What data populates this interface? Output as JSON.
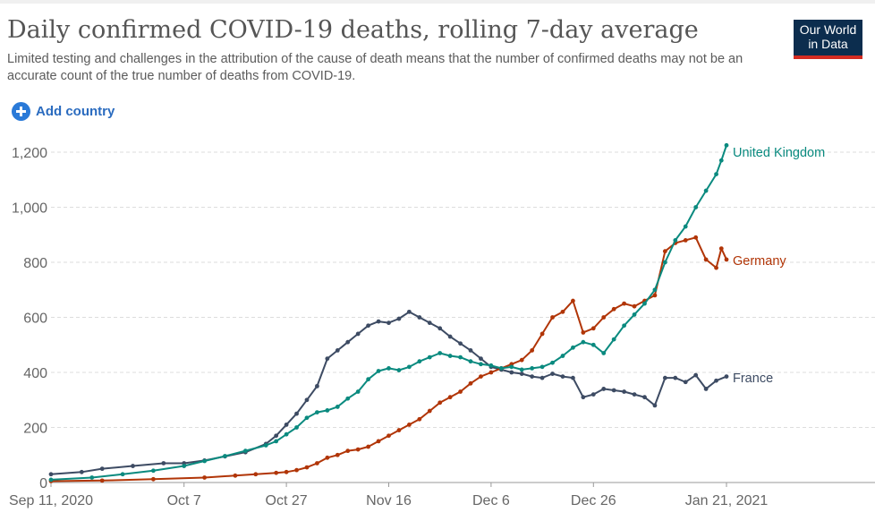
{
  "header": {
    "title": "Daily confirmed COVID-19 deaths, rolling 7-day average",
    "subtitle": "Limited testing and challenges in the attribution of the cause of death means that the number of confirmed deaths may not be an accurate count of the true number of deaths from COVID-19.",
    "logo_line1": "Our World",
    "logo_line2": "in Data",
    "add_country_label": "Add country",
    "add_icon": "plus-circle-icon"
  },
  "colors": {
    "uk": "#0a8a7f",
    "germany": "#b13507",
    "france": "#3d4b63",
    "accent": "#2a7ad8"
  },
  "chart_data": {
    "type": "line",
    "y_ticks": [
      0,
      200,
      400,
      600,
      800,
      1000,
      1200
    ],
    "y_tick_labels": [
      "0",
      "200",
      "400",
      "600",
      "800",
      "1,000",
      "1,200"
    ],
    "ylim": [
      0,
      1250
    ],
    "x_tick_labels": [
      "Sep 11, 2020",
      "Oct 7",
      "Oct 27",
      "Nov 16",
      "Dec 6",
      "Dec 26",
      "Jan 21, 2021"
    ],
    "x_tick_days": [
      0,
      26,
      46,
      66,
      86,
      106,
      132
    ],
    "x_range_days": [
      0,
      132
    ],
    "grid": "horizontal dashed",
    "series": [
      {
        "name": "United Kingdom",
        "key": "uk",
        "points": [
          [
            0,
            10
          ],
          [
            8,
            18
          ],
          [
            14,
            30
          ],
          [
            20,
            43
          ],
          [
            26,
            60
          ],
          [
            30,
            78
          ],
          [
            34,
            96
          ],
          [
            38,
            115
          ],
          [
            42,
            135
          ],
          [
            44,
            150
          ],
          [
            46,
            175
          ],
          [
            48,
            200
          ],
          [
            50,
            235
          ],
          [
            52,
            255
          ],
          [
            54,
            262
          ],
          [
            56,
            275
          ],
          [
            58,
            305
          ],
          [
            60,
            330
          ],
          [
            62,
            375
          ],
          [
            64,
            405
          ],
          [
            66,
            415
          ],
          [
            68,
            408
          ],
          [
            70,
            420
          ],
          [
            72,
            440
          ],
          [
            74,
            455
          ],
          [
            76,
            470
          ],
          [
            78,
            460
          ],
          [
            80,
            455
          ],
          [
            82,
            440
          ],
          [
            84,
            430
          ],
          [
            86,
            425
          ],
          [
            88,
            415
          ],
          [
            90,
            420
          ],
          [
            92,
            410
          ],
          [
            94,
            415
          ],
          [
            96,
            420
          ],
          [
            98,
            435
          ],
          [
            100,
            460
          ],
          [
            102,
            490
          ],
          [
            104,
            510
          ],
          [
            106,
            500
          ],
          [
            108,
            470
          ],
          [
            110,
            520
          ],
          [
            112,
            570
          ],
          [
            114,
            610
          ],
          [
            116,
            650
          ],
          [
            118,
            700
          ],
          [
            120,
            800
          ],
          [
            122,
            880
          ],
          [
            124,
            930
          ],
          [
            126,
            1000
          ],
          [
            128,
            1060
          ],
          [
            130,
            1120
          ],
          [
            131,
            1170
          ],
          [
            132,
            1225
          ]
        ]
      },
      {
        "name": "Germany",
        "key": "germany",
        "points": [
          [
            0,
            5
          ],
          [
            10,
            7
          ],
          [
            20,
            12
          ],
          [
            30,
            18
          ],
          [
            36,
            25
          ],
          [
            40,
            30
          ],
          [
            44,
            35
          ],
          [
            46,
            38
          ],
          [
            48,
            45
          ],
          [
            50,
            55
          ],
          [
            52,
            70
          ],
          [
            54,
            90
          ],
          [
            56,
            100
          ],
          [
            58,
            115
          ],
          [
            60,
            120
          ],
          [
            62,
            130
          ],
          [
            64,
            150
          ],
          [
            66,
            170
          ],
          [
            68,
            190
          ],
          [
            70,
            210
          ],
          [
            72,
            230
          ],
          [
            74,
            260
          ],
          [
            76,
            290
          ],
          [
            78,
            310
          ],
          [
            80,
            330
          ],
          [
            82,
            360
          ],
          [
            84,
            385
          ],
          [
            86,
            400
          ],
          [
            88,
            415
          ],
          [
            90,
            430
          ],
          [
            92,
            445
          ],
          [
            94,
            480
          ],
          [
            96,
            540
          ],
          [
            98,
            600
          ],
          [
            100,
            620
          ],
          [
            102,
            660
          ],
          [
            104,
            545
          ],
          [
            106,
            560
          ],
          [
            108,
            600
          ],
          [
            110,
            630
          ],
          [
            112,
            650
          ],
          [
            114,
            640
          ],
          [
            116,
            660
          ],
          [
            118,
            680
          ],
          [
            120,
            840
          ],
          [
            122,
            870
          ],
          [
            124,
            880
          ],
          [
            126,
            890
          ],
          [
            128,
            810
          ],
          [
            130,
            780
          ],
          [
            131,
            850
          ],
          [
            132,
            810
          ]
        ]
      },
      {
        "name": "France",
        "key": "france",
        "points": [
          [
            0,
            30
          ],
          [
            6,
            38
          ],
          [
            10,
            50
          ],
          [
            16,
            60
          ],
          [
            22,
            70
          ],
          [
            26,
            70
          ],
          [
            30,
            80
          ],
          [
            34,
            95
          ],
          [
            38,
            110
          ],
          [
            42,
            140
          ],
          [
            44,
            170
          ],
          [
            46,
            210
          ],
          [
            48,
            250
          ],
          [
            50,
            300
          ],
          [
            52,
            350
          ],
          [
            54,
            450
          ],
          [
            56,
            480
          ],
          [
            58,
            510
          ],
          [
            60,
            540
          ],
          [
            62,
            570
          ],
          [
            64,
            585
          ],
          [
            66,
            580
          ],
          [
            68,
            595
          ],
          [
            70,
            620
          ],
          [
            72,
            600
          ],
          [
            74,
            580
          ],
          [
            76,
            560
          ],
          [
            78,
            530
          ],
          [
            80,
            505
          ],
          [
            82,
            480
          ],
          [
            84,
            450
          ],
          [
            86,
            420
          ],
          [
            88,
            410
          ],
          [
            90,
            400
          ],
          [
            92,
            395
          ],
          [
            94,
            385
          ],
          [
            96,
            380
          ],
          [
            98,
            395
          ],
          [
            100,
            385
          ],
          [
            102,
            380
          ],
          [
            104,
            310
          ],
          [
            106,
            320
          ],
          [
            108,
            340
          ],
          [
            110,
            335
          ],
          [
            112,
            330
          ],
          [
            114,
            320
          ],
          [
            116,
            310
          ],
          [
            118,
            280
          ],
          [
            120,
            380
          ],
          [
            122,
            380
          ],
          [
            124,
            365
          ],
          [
            126,
            390
          ],
          [
            128,
            340
          ],
          [
            130,
            370
          ],
          [
            132,
            385
          ]
        ]
      }
    ]
  }
}
